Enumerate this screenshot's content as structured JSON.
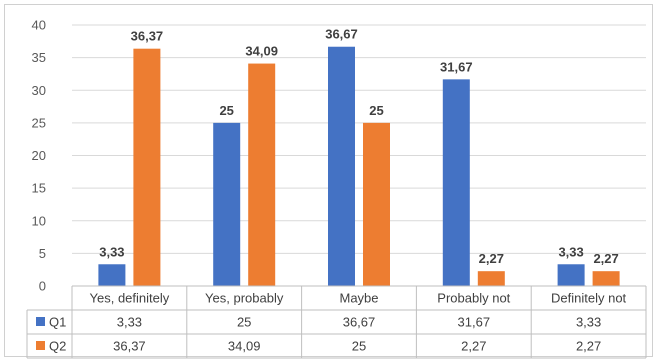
{
  "chart_data": {
    "type": "bar",
    "categories": [
      "Yes, definitely",
      "Yes, probably",
      "Maybe",
      "Probably not",
      "Definitely not"
    ],
    "series": [
      {
        "name": "Q1",
        "color": "#4472c4",
        "values": [
          3.33,
          25,
          36.67,
          31.67,
          3.33
        ],
        "labels": [
          "3,33",
          "25",
          "36,67",
          "31,67",
          "3,33"
        ]
      },
      {
        "name": "Q2",
        "color": "#ed7d31",
        "values": [
          36.37,
          34.09,
          25,
          2.27,
          2.27
        ],
        "labels": [
          "36,37",
          "34,09",
          "25",
          "2,27",
          "2,27"
        ]
      }
    ],
    "ylim": [
      0,
      40
    ],
    "yticks": [
      0,
      5,
      10,
      15,
      20,
      25,
      30,
      35,
      40
    ],
    "grid": true,
    "legend": "data-table-below",
    "data_table": true
  }
}
